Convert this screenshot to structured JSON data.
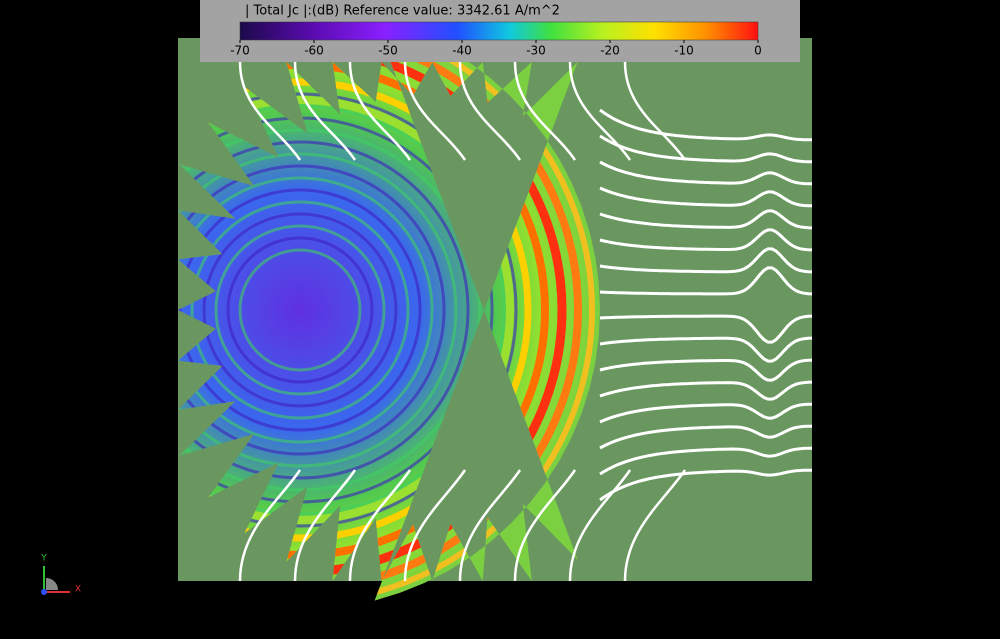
{
  "legend": {
    "title": "| Total Jc |:(dB) Reference value: 3342.61 A/m^2",
    "ticks": [
      -70,
      -60,
      -50,
      -40,
      -30,
      -20,
      -10,
      0
    ]
  },
  "axes": {
    "y": "Y",
    "x": "X"
  }
}
